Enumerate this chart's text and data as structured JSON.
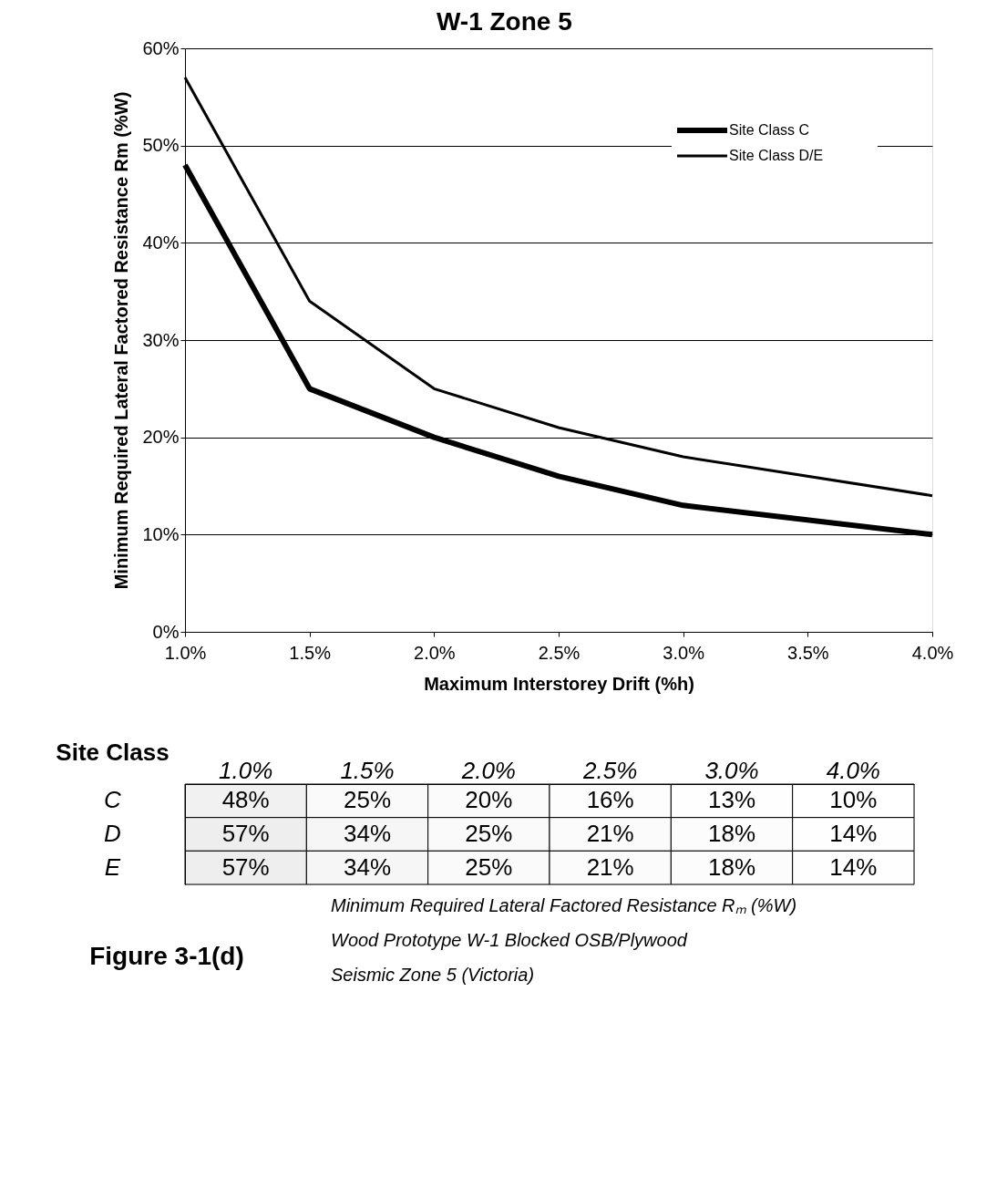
{
  "chart_data": [
    {
      "type": "line",
      "title": "W-1   Zone 5",
      "xlabel": "Maximum Interstorey Drift (%h)",
      "ylabel": "Minimum Required Lateral Factored Resistance Rm (%W)",
      "x": [
        1.0,
        1.5,
        2.0,
        2.5,
        3.0,
        4.0
      ],
      "series": [
        {
          "name": "Site Class C",
          "color": "#000000",
          "values": [
            48,
            25,
            20,
            16,
            13,
            10
          ]
        },
        {
          "name": "Site Class D/E",
          "color": "#000000",
          "values": [
            57,
            34,
            25,
            21,
            18,
            14
          ]
        }
      ],
      "xlim": [
        1.0,
        4.0
      ],
      "xticks": [
        {
          "value": 1.0,
          "label": "1.0%"
        },
        {
          "value": 1.5,
          "label": "1.5%"
        },
        {
          "value": 2.0,
          "label": "2.0%"
        },
        {
          "value": 2.5,
          "label": "2.5%"
        },
        {
          "value": 3.0,
          "label": "3.0%"
        },
        {
          "value": 3.5,
          "label": "3.5%"
        },
        {
          "value": 4.0,
          "label": "4.0%"
        }
      ],
      "ylim": [
        0,
        60
      ],
      "yticks": [
        {
          "value": 0,
          "label": "0%"
        },
        {
          "value": 10,
          "label": "10%"
        },
        {
          "value": 20,
          "label": "20%"
        },
        {
          "value": 30,
          "label": "30%"
        },
        {
          "value": 40,
          "label": "40%"
        },
        {
          "value": 50,
          "label": "50%"
        },
        {
          "value": 60,
          "label": "60%"
        }
      ],
      "grid": "y",
      "legend": "top right",
      "marker": "none",
      "line_style": "solid"
    },
    {
      "type": "heatmap",
      "ylabel": "Site Class",
      "categories": [
        "1.0%",
        "1.5%",
        "2.0%",
        "2.5%",
        "3.0%",
        "4.0%"
      ],
      "y_categories": [
        "C",
        "D",
        "E"
      ],
      "cells": [
        [
          48,
          25,
          20,
          16,
          13,
          10
        ],
        [
          57,
          34,
          25,
          21,
          18,
          14
        ],
        [
          57,
          34,
          25,
          21,
          18,
          14
        ]
      ],
      "cell_labels": [
        [
          "48%",
          "25%",
          "20%",
          "16%",
          "13%",
          "10%"
        ],
        [
          "57%",
          "34%",
          "25%",
          "21%",
          "18%",
          "14%"
        ],
        [
          "57%",
          "34%",
          "25%",
          "21%",
          "18%",
          "14%"
        ]
      ],
      "color": "#ffffff",
      "annotations": [
        "Figure 3-1(d)",
        "Minimum Required Lateral Factored Resistance Rₘ (%W)",
        "Wood Prototype W-1 Blocked OSB/Plywood",
        "Seismic Zone 5 (Victoria)"
      ]
    }
  ]
}
